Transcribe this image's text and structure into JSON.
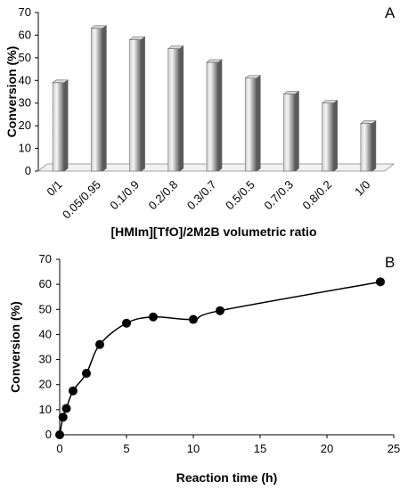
{
  "chart_data": [
    {
      "panel": "A",
      "type": "bar",
      "xlabel": "[HMIm][TfO]/2M2B volumetric ratio",
      "ylabel": "Conversion (%)",
      "ylim": [
        0,
        70
      ],
      "yticks": [
        0,
        10,
        20,
        30,
        40,
        50,
        60,
        70
      ],
      "categories": [
        "0/1",
        "0.05/0.95",
        "0.1/0.9",
        "0.2/0.8",
        "0.3/0.7",
        "0.5/0.5",
        "0.7/0.3",
        "0.8/0.2",
        "1/0"
      ],
      "values": [
        39,
        63,
        58,
        54,
        48,
        41,
        34,
        30,
        21
      ],
      "grid": false,
      "colors": {
        "bar_light": "#f2f2f2",
        "bar_dark": "#5a5a5a",
        "bar_top": "#d6d6d6"
      }
    },
    {
      "panel": "B",
      "type": "line",
      "xlabel": "Reaction time (h)",
      "ylabel": "Conversion (%)",
      "xlim": [
        0,
        25
      ],
      "ylim": [
        0,
        70
      ],
      "xticks": [
        0,
        5,
        10,
        15,
        20,
        25
      ],
      "yticks": [
        0,
        10,
        20,
        30,
        40,
        50,
        60,
        70
      ],
      "x": [
        0,
        0.25,
        0.5,
        1,
        2,
        3,
        5,
        7,
        10,
        12,
        24
      ],
      "y": [
        0,
        7,
        10.5,
        17.5,
        24.5,
        36,
        44.5,
        47,
        46,
        49.5,
        61
      ],
      "grid": false,
      "colors": {
        "line": "#000000",
        "marker": "#000000"
      }
    }
  ]
}
